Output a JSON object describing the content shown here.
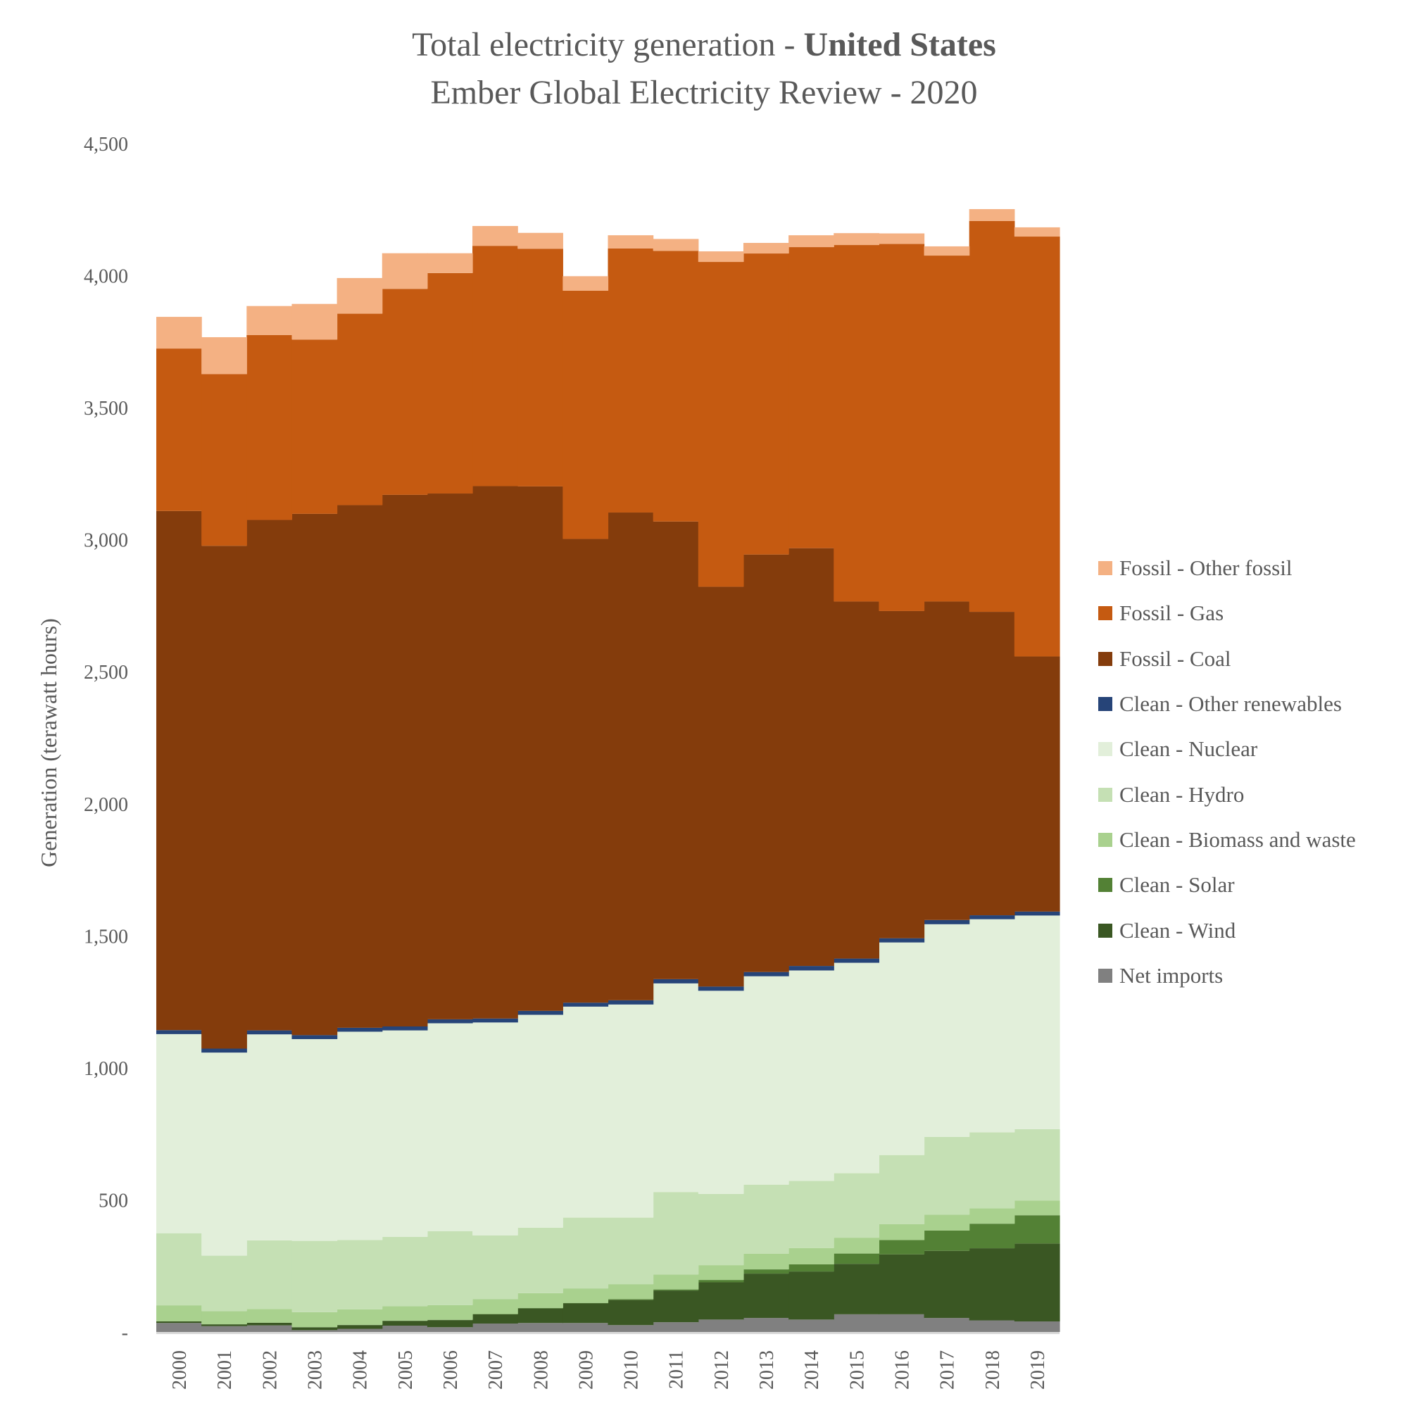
{
  "chart_data": {
    "type": "area",
    "stacking": "stacked",
    "step": true,
    "title": "Total electricity generation - ",
    "title_bold": "United States",
    "subtitle": "Ember Global Electricity Review - 2020",
    "xlabel": "",
    "ylabel": "Generation (terawatt hours)",
    "ylim": [
      0,
      4500
    ],
    "yticks": [
      0,
      500,
      1000,
      1500,
      2000,
      2500,
      3000,
      3500,
      4000,
      4500
    ],
    "ytick_labels": [
      "-",
      "500",
      "1,000",
      "1,500",
      "2,000",
      "2,500",
      "3,000",
      "3,500",
      "4,000",
      "4,500"
    ],
    "grid": false,
    "legend_position": "right",
    "categories": [
      "2000",
      "2001",
      "2002",
      "2003",
      "2004",
      "2005",
      "2006",
      "2007",
      "2008",
      "2009",
      "2010",
      "2011",
      "2012",
      "2013",
      "2014",
      "2015",
      "2016",
      "2017",
      "2018",
      "2019"
    ],
    "series": [
      {
        "name": "Net imports",
        "color": "#808080",
        "values": [
          34,
          22,
          25,
          7,
          12,
          24,
          18,
          32,
          34,
          34,
          26,
          37,
          47,
          53,
          47,
          67,
          67,
          53,
          44,
          40
        ]
      },
      {
        "name": "Clean - Wind",
        "color": "#3a5723",
        "values": [
          6,
          7,
          10,
          11,
          14,
          18,
          27,
          35,
          55,
          74,
          95,
          120,
          141,
          168,
          182,
          191,
          227,
          254,
          273,
          295
        ]
      },
      {
        "name": "Clean - Solar",
        "color": "#538135",
        "values": [
          0,
          0,
          0,
          0,
          1,
          1,
          1,
          1,
          2,
          2,
          3,
          4,
          9,
          16,
          27,
          39,
          54,
          77,
          93,
          107
        ]
      },
      {
        "name": "Clean - Biomass and waste",
        "color": "#a9d18e",
        "values": [
          61,
          50,
          52,
          57,
          59,
          55,
          56,
          56,
          56,
          55,
          57,
          57,
          56,
          59,
          62,
          60,
          60,
          60,
          58,
          56
        ]
      },
      {
        "name": "Clean - Hydro",
        "color": "#c5e0b4",
        "values": [
          273,
          210,
          260,
          270,
          262,
          262,
          280,
          242,
          248,
          268,
          252,
          312,
          270,
          262,
          254,
          244,
          262,
          295,
          288,
          270
        ]
      },
      {
        "name": "Clean - Nuclear",
        "color": "#e2efda",
        "values": [
          754,
          769,
          780,
          764,
          789,
          782,
          787,
          806,
          806,
          799,
          807,
          790,
          769,
          789,
          797,
          797,
          805,
          805,
          807,
          809
        ]
      },
      {
        "name": "Clean - Other renewables",
        "color": "#264478",
        "values": [
          15,
          15,
          15,
          15,
          15,
          15,
          15,
          15,
          15,
          15,
          16,
          16,
          16,
          16,
          17,
          16,
          16,
          16,
          15,
          15
        ]
      },
      {
        "name": "Fossil - Coal",
        "color": "#843c0c",
        "values": [
          1966,
          1904,
          1933,
          1974,
          1979,
          2013,
          1991,
          2016,
          1986,
          1756,
          1847,
          1733,
          1514,
          1581,
          1582,
          1352,
          1239,
          1206,
          1149,
          966
        ]
      },
      {
        "name": "Fossil - Gas",
        "color": "#c55a11",
        "values": [
          615,
          650,
          700,
          660,
          725,
          780,
          835,
          910,
          900,
          940,
          1000,
          1025,
          1230,
          1140,
          1140,
          1350,
          1390,
          1310,
          1480,
          1590
        ]
      },
      {
        "name": "Fossil - Other fossil",
        "color": "#f4b183",
        "values": [
          120,
          140,
          110,
          135,
          135,
          135,
          75,
          75,
          60,
          55,
          50,
          45,
          40,
          40,
          45,
          45,
          40,
          35,
          45,
          35
        ]
      }
    ],
    "legend_order": [
      "Fossil - Other fossil",
      "Fossil - Gas",
      "Fossil - Coal",
      "Clean - Other renewables",
      "Clean - Nuclear",
      "Clean - Hydro",
      "Clean - Biomass and waste",
      "Clean - Solar",
      "Clean - Wind",
      "Net imports"
    ]
  }
}
